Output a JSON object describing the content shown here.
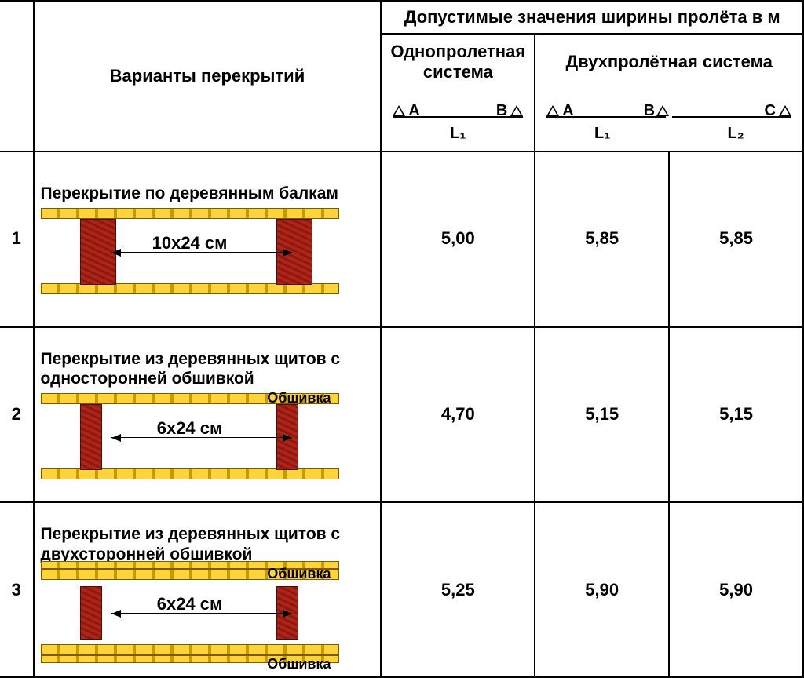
{
  "header": {
    "variants_title": "Варианты перекрытий",
    "span_title": "Допустимые значения ширины пролёта в м",
    "single_span": "Однопролетная система",
    "double_span": "Двухпролётная система",
    "supports": {
      "A": "A",
      "B": "B",
      "C": "C"
    },
    "L1": "L₁",
    "L2": "L₂"
  },
  "rows": [
    {
      "idx": "1",
      "title": "Перекрытие по деревянным балкам",
      "dim": "10х24 см",
      "beam_width": 44,
      "beam_top_off": 14,
      "beam_height": 82,
      "extra_top_plank": false,
      "extra_bot_plank": false,
      "obshivka_top": null,
      "obshivka_bot": null,
      "L1_single": "5,00",
      "L1_double": "5,85",
      "L2_double": "5,85"
    },
    {
      "idx": "2",
      "title": "Перекрытие из деревянных щитов с односторонней обшивкой",
      "dim": "6х24 см",
      "beam_width": 26,
      "beam_top_off": 14,
      "beam_height": 82,
      "extra_top_plank": false,
      "extra_bot_plank": false,
      "obshivka_top": "Обшивка",
      "obshivka_bot": null,
      "L1_single": "4,70",
      "L1_double": "5,15",
      "L2_double": "5,15"
    },
    {
      "idx": "3",
      "title": "Перекрытие из деревянных щитов с двухсторонней обшивкой",
      "dim": "6х24 см",
      "beam_width": 26,
      "beam_top_off": 22,
      "beam_height": 66,
      "extra_top_plank": true,
      "extra_bot_plank": true,
      "obshivka_top": "Обшивка",
      "obshivka_bot": "Обшивка",
      "L1_single": "5,25",
      "L1_double": "5,90",
      "L2_double": "5,90"
    }
  ],
  "colors": {
    "plank": "#ffd43b",
    "plank_dark": "#c79a00",
    "beam": "#b02418",
    "beam_dark": "#8a1a10",
    "border": "#000000",
    "bg": "#ffffff"
  }
}
